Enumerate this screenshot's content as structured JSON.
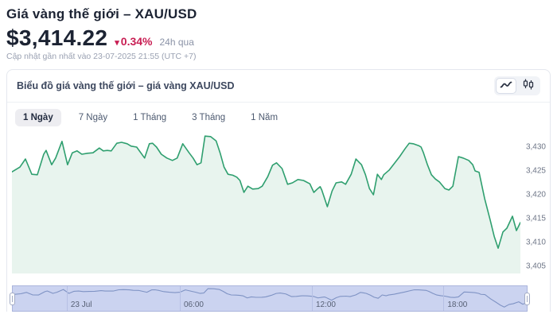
{
  "page": {
    "title": "Giá vàng thế giới – XAU/USD",
    "price": "$3,414.22",
    "change_arrow": "▾",
    "change_percent": "0.34%",
    "change_period": "24h qua",
    "last_updated": "Cập nhật gần nhất vào 23-07-2025 21:55 (UTC +7)"
  },
  "panel": {
    "title": "Biểu đồ giá vàng thế giới – giá vàng XAU/USD",
    "toggle_icons": [
      "line-chart",
      "candlestick-chart"
    ]
  },
  "tabs": [
    {
      "label": "1 Ngày",
      "active": true
    },
    {
      "label": "7 Ngày",
      "active": false
    },
    {
      "label": "1 Tháng",
      "active": false
    },
    {
      "label": "3 Tháng",
      "active": false
    },
    {
      "label": "1 Năm",
      "active": false
    }
  ],
  "colors": {
    "line": "#2f9f6f",
    "area_fill": "#e8f4ee",
    "change_negative": "#c81e53",
    "navigator_band": "#cbd3f0",
    "navigator_line": "#7f93c4",
    "text_dark": "#1c2333"
  },
  "chart_data": {
    "type": "area",
    "title": "Giá vàng thế giới – giá vàng XAU/USD",
    "pair": "XAU/USD",
    "selected_range": "1 Ngày",
    "ylim": [
      3403.5,
      3433.5
    ],
    "y_ticks": [
      {
        "label": "3,430",
        "value": 3430
      },
      {
        "label": "3,425",
        "value": 3425
      },
      {
        "label": "3,420",
        "value": 3420
      },
      {
        "label": "3,415",
        "value": 3415
      },
      {
        "label": "3,410",
        "value": 3410
      },
      {
        "label": "3,405",
        "value": 3405
      }
    ],
    "grid": false,
    "series": [
      {
        "name": "XAU/USD",
        "points": [
          [
            0,
            3424.8
          ],
          [
            10,
            3425.8
          ],
          [
            17,
            3427.5
          ],
          [
            25,
            3424.3
          ],
          [
            32,
            3424.2
          ],
          [
            40,
            3428.5
          ],
          [
            43,
            3429.3
          ],
          [
            50,
            3426.3
          ],
          [
            55,
            3427.7
          ],
          [
            63,
            3431.2
          ],
          [
            70,
            3426.3
          ],
          [
            76,
            3428.8
          ],
          [
            82,
            3429.2
          ],
          [
            88,
            3428.5
          ],
          [
            95,
            3428.7
          ],
          [
            102,
            3428.8
          ],
          [
            110,
            3429.8
          ],
          [
            115,
            3429.2
          ],
          [
            120,
            3429.3
          ],
          [
            125,
            3429.2
          ],
          [
            132,
            3430.8
          ],
          [
            138,
            3431.0
          ],
          [
            145,
            3430.7
          ],
          [
            150,
            3430.2
          ],
          [
            157,
            3430.0
          ],
          [
            167,
            3427.7
          ],
          [
            173,
            3430.7
          ],
          [
            177,
            3430.8
          ],
          [
            182,
            3430.0
          ],
          [
            188,
            3428.5
          ],
          [
            195,
            3427.7
          ],
          [
            202,
            3427.2
          ],
          [
            208,
            3427.7
          ],
          [
            215,
            3430.7
          ],
          [
            223,
            3428.8
          ],
          [
            228,
            3427.7
          ],
          [
            233,
            3426.3
          ],
          [
            238,
            3426.7
          ],
          [
            243,
            3432.3
          ],
          [
            250,
            3432.2
          ],
          [
            257,
            3431.3
          ],
          [
            262,
            3428.8
          ],
          [
            267,
            3425.8
          ],
          [
            272,
            3424.3
          ],
          [
            278,
            3424.1
          ],
          [
            283,
            3423.7
          ],
          [
            287,
            3423.0
          ],
          [
            292,
            3420.5
          ],
          [
            297,
            3421.8
          ],
          [
            303,
            3421.2
          ],
          [
            310,
            3421.3
          ],
          [
            315,
            3421.8
          ],
          [
            322,
            3423.8
          ],
          [
            328,
            3426.2
          ],
          [
            333,
            3426.7
          ],
          [
            340,
            3425.5
          ],
          [
            347,
            3422.2
          ],
          [
            353,
            3422.5
          ],
          [
            360,
            3423.2
          ],
          [
            367,
            3423.0
          ],
          [
            375,
            3422.3
          ],
          [
            380,
            3420.5
          ],
          [
            385,
            3421.3
          ],
          [
            388,
            3421.7
          ],
          [
            390,
            3421.0
          ],
          [
            397,
            3417.5
          ],
          [
            403,
            3420.8
          ],
          [
            408,
            3422.5
          ],
          [
            415,
            3422.7
          ],
          [
            420,
            3422.2
          ],
          [
            427,
            3424.3
          ],
          [
            433,
            3427.5
          ],
          [
            437,
            3426.8
          ],
          [
            440,
            3426.3
          ],
          [
            445,
            3424.2
          ],
          [
            450,
            3421.3
          ],
          [
            455,
            3420.0
          ],
          [
            460,
            3424.3
          ],
          [
            465,
            3423.2
          ],
          [
            468,
            3424.2
          ],
          [
            475,
            3425.2
          ],
          [
            482,
            3426.7
          ],
          [
            488,
            3428.0
          ],
          [
            495,
            3429.7
          ],
          [
            500,
            3430.8
          ],
          [
            505,
            3430.7
          ],
          [
            512,
            3430.3
          ],
          [
            515,
            3430.0
          ],
          [
            518,
            3428.8
          ],
          [
            523,
            3426.3
          ],
          [
            528,
            3424.2
          ],
          [
            533,
            3423.3
          ],
          [
            538,
            3422.7
          ],
          [
            545,
            3421.3
          ],
          [
            550,
            3421.0
          ],
          [
            555,
            3421.8
          ],
          [
            562,
            3428.0
          ],
          [
            568,
            3427.7
          ],
          [
            575,
            3427.2
          ],
          [
            580,
            3426.3
          ],
          [
            583,
            3425.0
          ],
          [
            588,
            3424.7
          ],
          [
            595,
            3419.2
          ],
          [
            602,
            3414.7
          ],
          [
            607,
            3411.3
          ],
          [
            612,
            3408.8
          ],
          [
            618,
            3412.2
          ],
          [
            623,
            3413.0
          ],
          [
            630,
            3415.5
          ],
          [
            635,
            3412.5
          ],
          [
            640,
            3414.2
          ]
        ]
      }
    ],
    "navigator": {
      "x_labels": [
        {
          "label": "23 Jul",
          "pos": 0.105
        },
        {
          "label": "06:00",
          "pos": 0.325
        },
        {
          "label": "12:00",
          "pos": 0.582
        },
        {
          "label": "18:00",
          "pos": 0.838
        }
      ]
    }
  }
}
